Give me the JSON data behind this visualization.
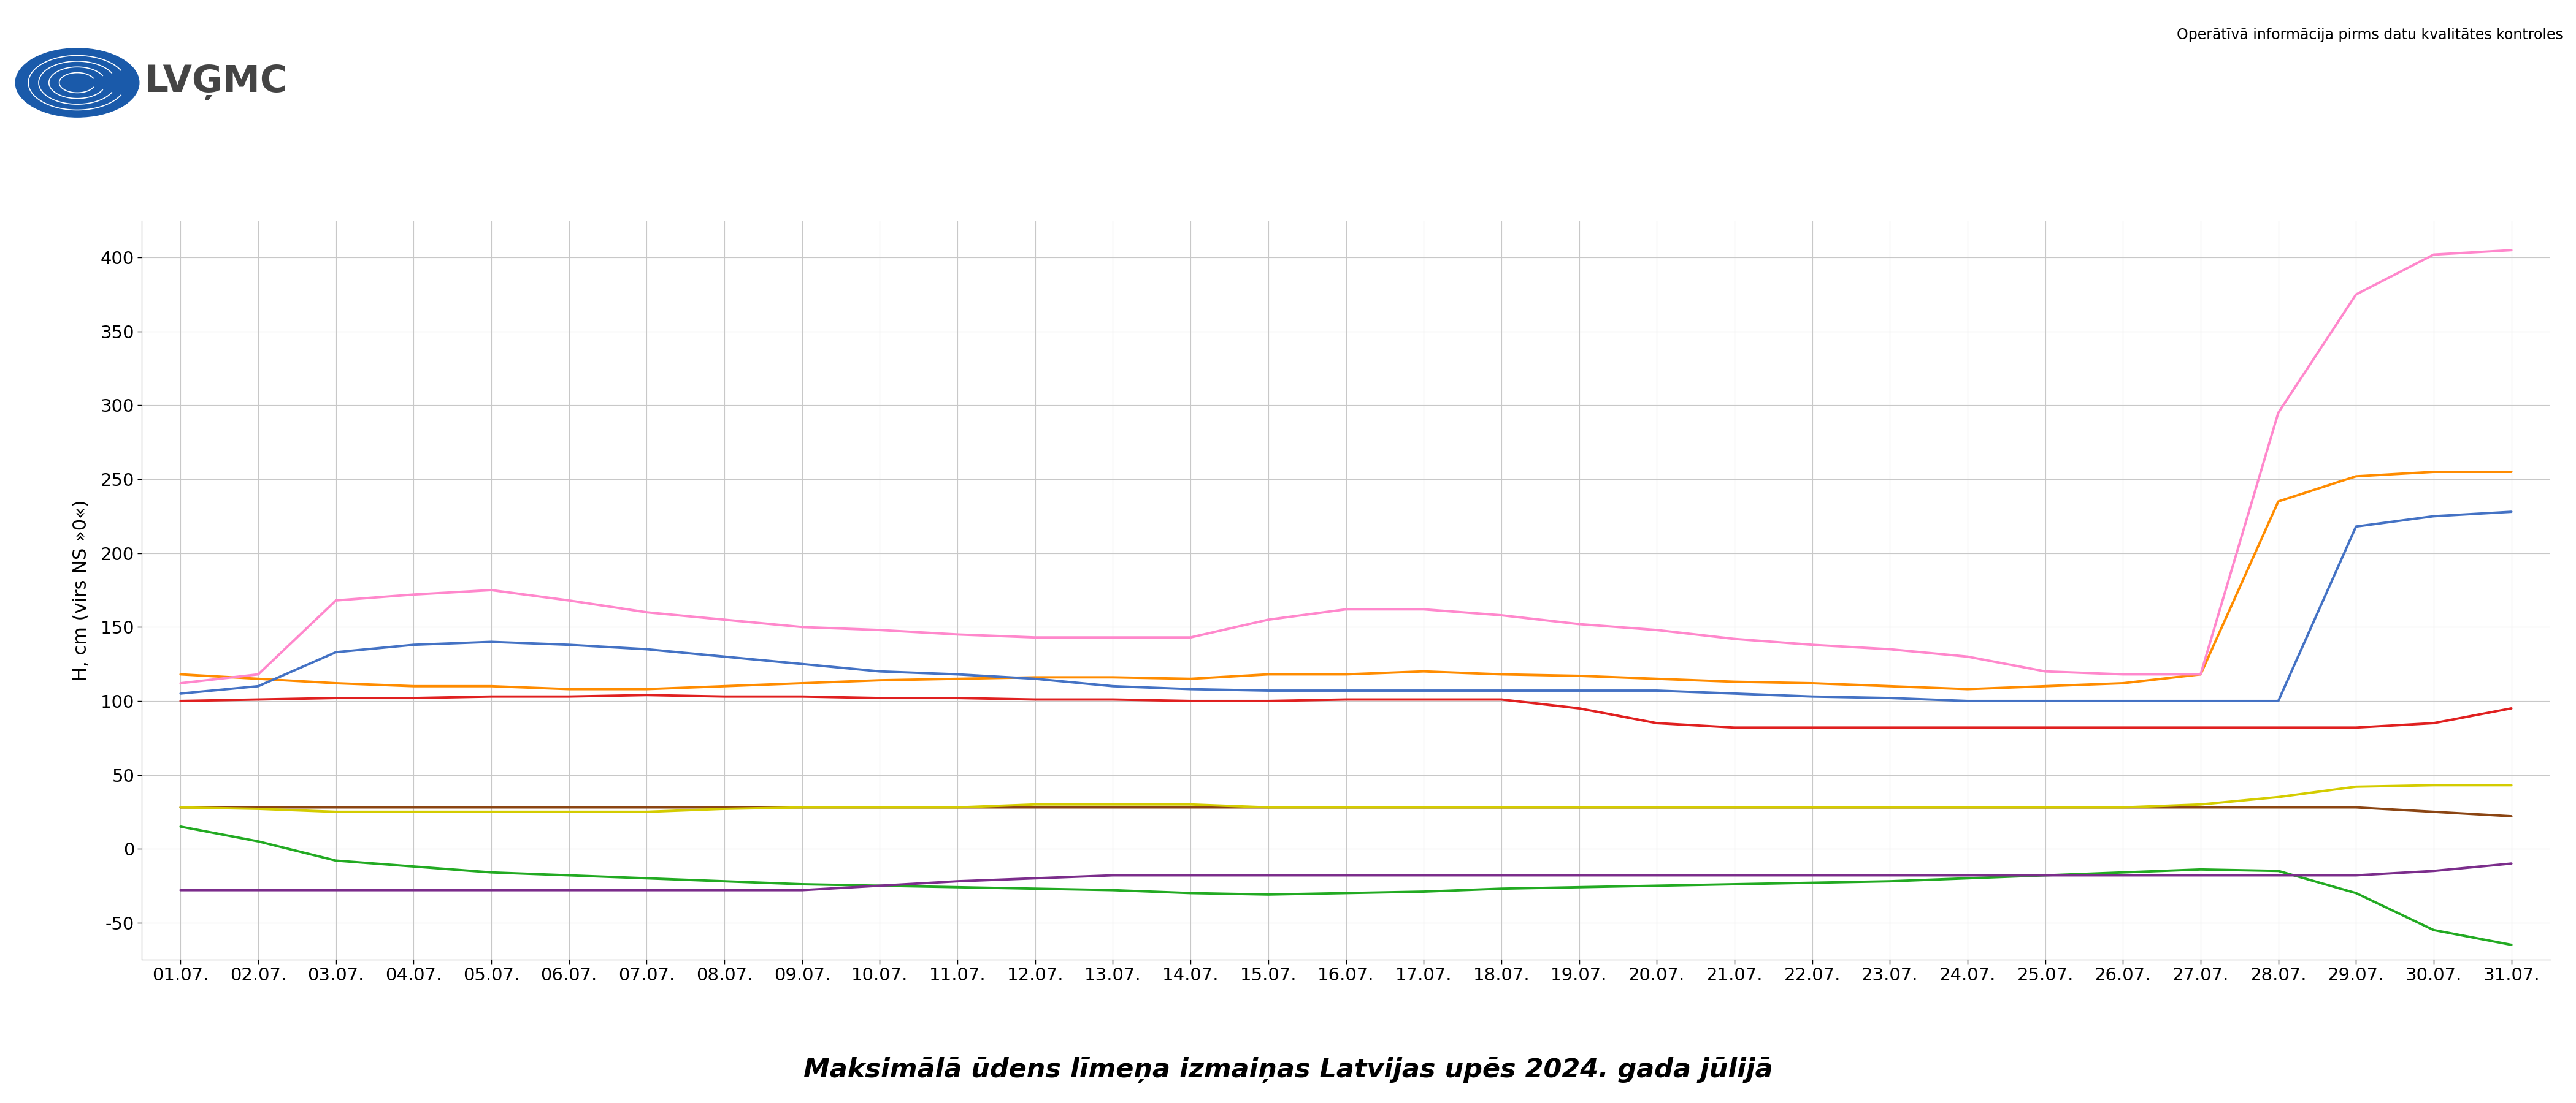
{
  "title": "Maksimālā ūdens līmeņa izmaiņas Latvijas upēs 2024. gada jūlijā",
  "ylabel": "H, cm (virs NS »0«)",
  "watermark": "Operātīvā informācija pirms datu kvalitātes kontroles",
  "days": 31,
  "series": {
    "Aiviekste - Lubāna": {
      "color": "#e02020",
      "values": [
        100,
        101,
        102,
        102,
        103,
        103,
        104,
        103,
        103,
        102,
        102,
        101,
        101,
        100,
        100,
        101,
        101,
        101,
        95,
        85,
        82,
        82,
        82,
        82,
        82,
        82,
        82,
        82,
        82,
        85,
        95
      ]
    },
    "Daugava - Daugavpils": {
      "color": "#22aa22",
      "values": [
        15,
        5,
        -8,
        -12,
        -16,
        -18,
        -20,
        -22,
        -24,
        -25,
        -26,
        -27,
        -28,
        -30,
        -31,
        -30,
        -29,
        -27,
        -26,
        -25,
        -24,
        -23,
        -22,
        -20,
        -18,
        -16,
        -14,
        -15,
        -30,
        -55,
        -65
      ]
    },
    "Lielā Jugla - Zaķi": {
      "color": "#ff8c00",
      "values": [
        118,
        115,
        112,
        110,
        110,
        108,
        108,
        110,
        112,
        114,
        115,
        116,
        116,
        115,
        118,
        118,
        120,
        118,
        117,
        115,
        113,
        112,
        110,
        108,
        110,
        112,
        118,
        235,
        252,
        255,
        255
      ]
    },
    "Salaca - Lagaste": {
      "color": "#8B4513",
      "values": [
        28,
        28,
        28,
        28,
        28,
        28,
        28,
        28,
        28,
        28,
        28,
        28,
        28,
        28,
        28,
        28,
        28,
        28,
        28,
        28,
        28,
        28,
        28,
        28,
        28,
        28,
        28,
        28,
        28,
        25,
        22
      ]
    },
    "Bārta - Dūkupji": {
      "color": "#4472c4",
      "values": [
        105,
        110,
        133,
        138,
        140,
        138,
        135,
        130,
        125,
        120,
        118,
        115,
        110,
        108,
        107,
        107,
        107,
        107,
        107,
        107,
        105,
        103,
        102,
        100,
        100,
        100,
        100,
        100,
        218,
        225,
        228
      ]
    },
    "Gauja - Valmiera": {
      "color": "#7b2d8b",
      "values": [
        -28,
        -28,
        -28,
        -28,
        -28,
        -28,
        -28,
        -28,
        -28,
        -25,
        -22,
        -20,
        -18,
        -18,
        -18,
        -18,
        -18,
        -18,
        -18,
        -18,
        -18,
        -18,
        -18,
        -18,
        -18,
        -18,
        -18,
        -18,
        -18,
        -15,
        -10
      ]
    },
    "Mūsa - Bauska": {
      "color": "#d4cc00",
      "values": [
        28,
        27,
        25,
        25,
        25,
        25,
        25,
        27,
        28,
        28,
        28,
        30,
        30,
        30,
        28,
        28,
        28,
        28,
        28,
        28,
        28,
        28,
        28,
        28,
        28,
        28,
        30,
        35,
        42,
        43,
        43
      ]
    },
    "Venta - Vārdava": {
      "color": "#ff88cc",
      "values": [
        112,
        118,
        168,
        172,
        175,
        168,
        160,
        155,
        150,
        148,
        145,
        143,
        143,
        143,
        155,
        162,
        162,
        158,
        152,
        148,
        142,
        138,
        135,
        130,
        120,
        118,
        118,
        295,
        375,
        402,
        405
      ]
    }
  },
  "ylim": [
    -75,
    425
  ],
  "yticks": [
    -50,
    0,
    50,
    100,
    150,
    200,
    250,
    300,
    350,
    400
  ],
  "bg_color": "#ffffff",
  "grid_color": "#c8c8c8",
  "logo_circle_color": "#1a5aaa",
  "logo_text": "LVĢMC",
  "logo_text_color": "#444444"
}
